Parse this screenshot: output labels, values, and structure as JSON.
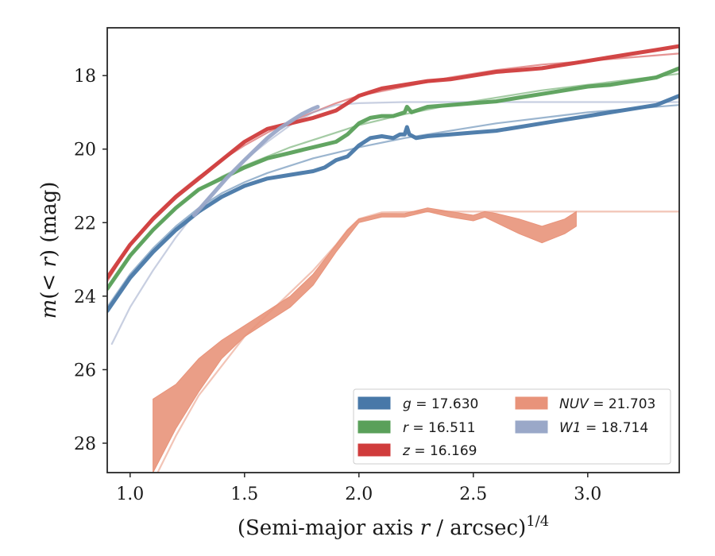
{
  "chart_data": {
    "type": "line",
    "xlabel": "(Semi-major axis r / arcsec)",
    "xlabel_parts": {
      "pre": "(Semi-major axis ",
      "var": "r",
      "post": " / arcsec)",
      "sup": "1/4"
    },
    "ylabel": "m(< r) (mag)",
    "ylabel_parts": {
      "var": "m",
      "mid": "(< ",
      "var2": "r",
      "post": ") (mag)"
    },
    "xlim": [
      0.9,
      3.4
    ],
    "ylim": [
      28.8,
      16.7
    ],
    "y_inverted": true,
    "xticks": [
      1.0,
      1.5,
      2.0,
      2.5,
      3.0
    ],
    "xtick_labels": [
      "1.0",
      "1.5",
      "2.0",
      "2.5",
      "3.0"
    ],
    "yticks": [
      18,
      20,
      22,
      24,
      26,
      28
    ],
    "ytick_labels": [
      "18",
      "20",
      "22",
      "24",
      "26",
      "28"
    ],
    "grid": false,
    "legend_position": "lower-right",
    "series": [
      {
        "key": "g",
        "name": "g = 17.630",
        "label_var": "g",
        "label_val": " = 17.630",
        "color": "#4878a8",
        "x": [
          0.9,
          1.0,
          1.1,
          1.2,
          1.3,
          1.4,
          1.5,
          1.6,
          1.7,
          1.8,
          1.85,
          1.9,
          1.95,
          2.0,
          2.05,
          2.1,
          2.15,
          2.18,
          2.2,
          2.21,
          2.22,
          2.25,
          2.3,
          2.4,
          2.5,
          2.6,
          2.7,
          2.8,
          2.9,
          3.0,
          3.1,
          3.2,
          3.3,
          3.4
        ],
        "y": [
          24.4,
          23.5,
          22.8,
          22.2,
          21.7,
          21.3,
          21.0,
          20.8,
          20.7,
          20.6,
          20.5,
          20.3,
          20.2,
          19.9,
          19.7,
          19.65,
          19.7,
          19.6,
          19.6,
          19.4,
          19.6,
          19.7,
          19.65,
          19.6,
          19.55,
          19.5,
          19.4,
          19.3,
          19.2,
          19.1,
          19.0,
          18.9,
          18.8,
          18.55
        ]
      },
      {
        "key": "r",
        "name": "r = 16.511",
        "label_var": "r",
        "label_val": " = 16.511",
        "color": "#5aa05a",
        "x": [
          0.9,
          1.0,
          1.1,
          1.2,
          1.3,
          1.4,
          1.5,
          1.6,
          1.7,
          1.8,
          1.9,
          1.95,
          2.0,
          2.05,
          2.1,
          2.15,
          2.2,
          2.21,
          2.23,
          2.3,
          2.4,
          2.5,
          2.6,
          2.7,
          2.8,
          2.9,
          3.0,
          3.1,
          3.2,
          3.3,
          3.4
        ],
        "y": [
          23.8,
          22.9,
          22.2,
          21.6,
          21.1,
          20.8,
          20.5,
          20.25,
          20.1,
          19.95,
          19.8,
          19.6,
          19.3,
          19.15,
          19.1,
          19.1,
          19.0,
          18.85,
          19.0,
          18.85,
          18.8,
          18.75,
          18.7,
          18.6,
          18.5,
          18.4,
          18.3,
          18.25,
          18.15,
          18.05,
          17.8
        ]
      },
      {
        "key": "z",
        "name": "z = 16.169",
        "label_var": "z",
        "label_val": " = 16.169",
        "color": "#d03c3c",
        "x": [
          0.9,
          1.0,
          1.1,
          1.2,
          1.3,
          1.4,
          1.5,
          1.6,
          1.7,
          1.8,
          1.9,
          2.0,
          2.1,
          2.2,
          2.3,
          2.4,
          2.5,
          2.6,
          2.7,
          2.8,
          2.9,
          3.0,
          3.1,
          3.2,
          3.3,
          3.4
        ],
        "y": [
          23.5,
          22.6,
          21.9,
          21.3,
          20.8,
          20.3,
          19.8,
          19.45,
          19.3,
          19.15,
          18.95,
          18.55,
          18.35,
          18.25,
          18.15,
          18.1,
          18.0,
          17.9,
          17.85,
          17.8,
          17.7,
          17.6,
          17.5,
          17.4,
          17.3,
          17.2
        ]
      },
      {
        "key": "W1",
        "name": "W1 = 18.714",
        "label_var": "W1",
        "label_val": " = 18.714",
        "color": "#9aa8c8",
        "x": [
          1.28,
          1.35,
          1.42,
          1.5,
          1.55,
          1.6,
          1.65,
          1.7,
          1.75,
          1.8,
          1.82
        ],
        "y": [
          21.8,
          21.3,
          20.8,
          20.3,
          20.0,
          19.7,
          19.45,
          19.25,
          19.05,
          18.9,
          18.85
        ]
      },
      {
        "key": "NUV",
        "name": "NUV = 21.703",
        "label_var": "NUV",
        "label_val": " = 21.703",
        "color": "#e8937a",
        "band": true,
        "x": [
          1.1,
          1.2,
          1.3,
          1.4,
          1.5,
          1.6,
          1.7,
          1.8,
          1.9,
          1.95,
          2.0,
          2.1,
          2.2,
          2.3,
          2.4,
          2.5,
          2.55,
          2.6,
          2.7,
          2.8,
          2.9,
          2.95
        ],
        "y_low": [
          26.8,
          26.4,
          25.7,
          25.2,
          24.8,
          24.4,
          24.0,
          23.4,
          22.6,
          22.2,
          21.9,
          21.75,
          21.75,
          21.6,
          21.7,
          21.8,
          21.7,
          21.75,
          21.9,
          22.1,
          21.9,
          21.7
        ],
        "y_high": [
          28.8,
          27.6,
          26.6,
          25.7,
          25.1,
          24.7,
          24.3,
          23.7,
          22.8,
          22.4,
          22.0,
          21.85,
          21.85,
          21.7,
          21.85,
          21.95,
          21.85,
          22.0,
          22.3,
          22.55,
          22.3,
          22.1
        ]
      }
    ],
    "models": [
      {
        "key": "g",
        "color": "#4878a8",
        "x": [
          0.9,
          1.0,
          1.1,
          1.2,
          1.3,
          1.4,
          1.5,
          1.6,
          1.7,
          1.8,
          1.9,
          2.0,
          2.2,
          2.4,
          2.6,
          2.8,
          3.0,
          3.2,
          3.4
        ],
        "y": [
          24.3,
          23.4,
          22.7,
          22.1,
          21.6,
          21.2,
          20.9,
          20.65,
          20.45,
          20.25,
          20.1,
          19.95,
          19.7,
          19.5,
          19.3,
          19.15,
          19.0,
          18.9,
          18.8
        ]
      },
      {
        "key": "r",
        "color": "#5aa05a",
        "x": [
          0.9,
          1.0,
          1.1,
          1.2,
          1.3,
          1.4,
          1.5,
          1.6,
          1.7,
          1.8,
          1.9,
          2.0,
          2.2,
          2.4,
          2.6,
          2.8,
          3.0,
          3.2,
          3.4
        ],
        "y": [
          23.8,
          22.9,
          22.2,
          21.6,
          21.1,
          20.75,
          20.45,
          20.2,
          19.95,
          19.75,
          19.55,
          19.35,
          19.05,
          18.8,
          18.6,
          18.4,
          18.25,
          18.1,
          17.95
        ]
      },
      {
        "key": "z",
        "color": "#d03c3c",
        "x": [
          0.9,
          1.0,
          1.1,
          1.2,
          1.3,
          1.4,
          1.5,
          1.6,
          1.7,
          1.8,
          1.9,
          2.0,
          2.2,
          2.4,
          2.6,
          2.8,
          3.0,
          3.2,
          3.4
        ],
        "y": [
          23.6,
          22.6,
          21.85,
          21.25,
          20.75,
          20.3,
          19.9,
          19.55,
          19.25,
          19.0,
          18.75,
          18.55,
          18.3,
          18.05,
          17.85,
          17.7,
          17.6,
          17.5,
          17.4
        ]
      },
      {
        "key": "W1",
        "color": "#9aa8c8",
        "x": [
          0.92,
          1.0,
          1.1,
          1.2,
          1.3,
          1.4,
          1.5,
          1.6,
          1.7,
          1.8,
          1.9,
          2.0,
          2.2,
          2.6,
          3.0,
          3.4
        ],
        "y": [
          25.3,
          24.3,
          23.3,
          22.4,
          21.6,
          20.9,
          20.3,
          19.8,
          19.35,
          19.0,
          18.8,
          18.75,
          18.72,
          18.72,
          18.72,
          18.72
        ]
      },
      {
        "key": "NUV",
        "color": "#e8937a",
        "x": [
          1.12,
          1.2,
          1.3,
          1.4,
          1.5,
          1.6,
          1.7,
          1.8,
          1.9,
          1.95,
          2.0,
          2.1,
          2.3,
          2.6,
          3.0,
          3.4
        ],
        "y": [
          28.8,
          27.8,
          26.7,
          25.9,
          25.1,
          24.5,
          23.9,
          23.3,
          22.6,
          22.2,
          21.9,
          21.72,
          21.7,
          21.7,
          21.7,
          21.7
        ]
      }
    ]
  }
}
